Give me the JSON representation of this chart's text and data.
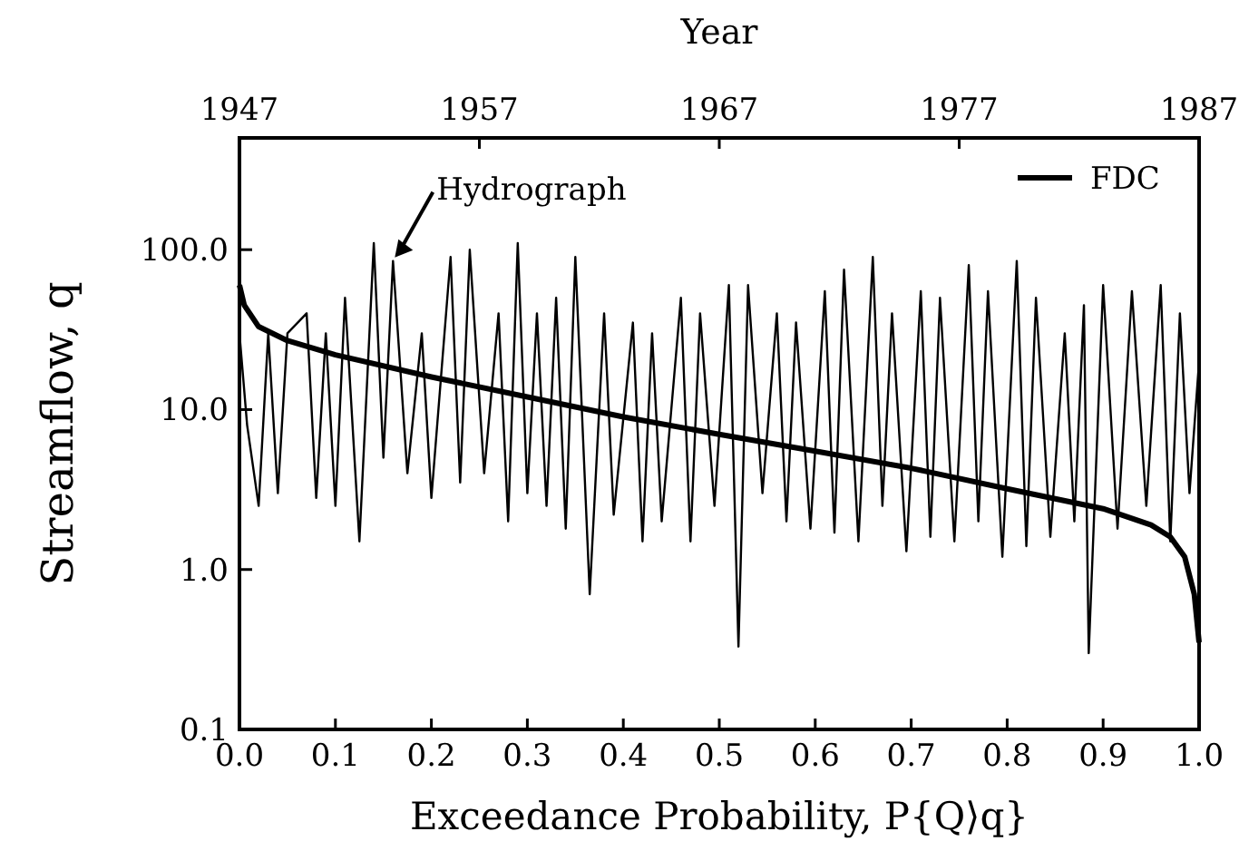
{
  "chart_data": {
    "type": "line",
    "xlabel": "Exceedance Probability, P{Q⟩q}",
    "ylabel": "Streamflow, q",
    "x2label": "Year",
    "log": "y",
    "grid": false,
    "legend": "top right",
    "marker": "none",
    "line_style": "solid",
    "xlim": [
      0,
      1
    ],
    "xticks": [
      {
        "value": 0,
        "label": "0.0"
      },
      0.1,
      0.2,
      0.3,
      0.4,
      0.5,
      0.6,
      0.7,
      0.8,
      0.9,
      {
        "value": 1,
        "label": "1.0"
      }
    ],
    "x2lim": [
      1947,
      1987
    ],
    "x2ticks": [
      1947,
      1957,
      1967,
      1977,
      1987
    ],
    "ylim": [
      0.1,
      500
    ],
    "yticks": [
      {
        "value": 0.1,
        "label": "0.1"
      },
      {
        "value": 1,
        "label": "1.0"
      },
      {
        "value": 10,
        "label": "10.0"
      },
      {
        "value": 100,
        "label": "100.0"
      }
    ],
    "annotations": [
      {
        "text": "Hydrograph",
        "x": 0.16,
        "y": 85
      }
    ],
    "series": [
      {
        "color": "#000000",
        "x": [
          0,
          0.008,
          0.02,
          0.03,
          0.04,
          0.05,
          0.07,
          0.08,
          0.09,
          0.1,
          0.11,
          0.125,
          0.14,
          0.15,
          0.16,
          0.175,
          0.19,
          0.2,
          0.22,
          0.23,
          0.24,
          0.255,
          0.27,
          0.28,
          0.29,
          0.3,
          0.31,
          0.32,
          0.33,
          0.34,
          0.35,
          0.365,
          0.38,
          0.39,
          0.41,
          0.42,
          0.43,
          0.44,
          0.46,
          0.47,
          0.48,
          0.495,
          0.51,
          0.52,
          0.53,
          0.545,
          0.56,
          0.57,
          0.58,
          0.595,
          0.61,
          0.62,
          0.63,
          0.645,
          0.66,
          0.67,
          0.68,
          0.695,
          0.71,
          0.72,
          0.73,
          0.745,
          0.76,
          0.77,
          0.78,
          0.795,
          0.81,
          0.82,
          0.83,
          0.845,
          0.86,
          0.87,
          0.88,
          0.885,
          0.9,
          0.915,
          0.93,
          0.945,
          0.96,
          0.97,
          0.98,
          0.99,
          1
        ],
        "values": [
          30,
          8,
          2.5,
          30,
          3,
          30,
          40,
          2.8,
          30,
          2.5,
          50,
          1.5,
          110,
          5,
          85,
          4,
          30,
          2.8,
          90,
          3.5,
          100,
          4,
          40,
          2,
          110,
          3,
          40,
          2.5,
          50,
          1.8,
          90,
          0.7,
          40,
          2.2,
          35,
          1.5,
          30,
          2,
          50,
          1.5,
          40,
          2.5,
          60,
          0.33,
          60,
          3,
          40,
          2,
          35,
          1.8,
          55,
          1.7,
          75,
          1.5,
          90,
          2.5,
          40,
          1.3,
          55,
          1.6,
          50,
          1.5,
          80,
          2,
          55,
          1.2,
          85,
          1.4,
          50,
          1.6,
          30,
          2,
          45,
          0.3,
          60,
          1.8,
          55,
          2.5,
          60,
          1.5,
          40,
          3,
          20
        ]
      },
      {
        "name": "FDC",
        "color": "#000000",
        "x": [
          0,
          0.005,
          0.02,
          0.05,
          0.1,
          0.2,
          0.3,
          0.4,
          0.5,
          0.6,
          0.7,
          0.8,
          0.9,
          0.95,
          0.97,
          0.985,
          0.995,
          1
        ],
        "values": [
          60,
          45,
          33,
          27,
          22,
          16,
          12,
          9,
          7,
          5.5,
          4.3,
          3.2,
          2.4,
          1.9,
          1.6,
          1.2,
          0.7,
          0.35
        ]
      }
    ]
  }
}
